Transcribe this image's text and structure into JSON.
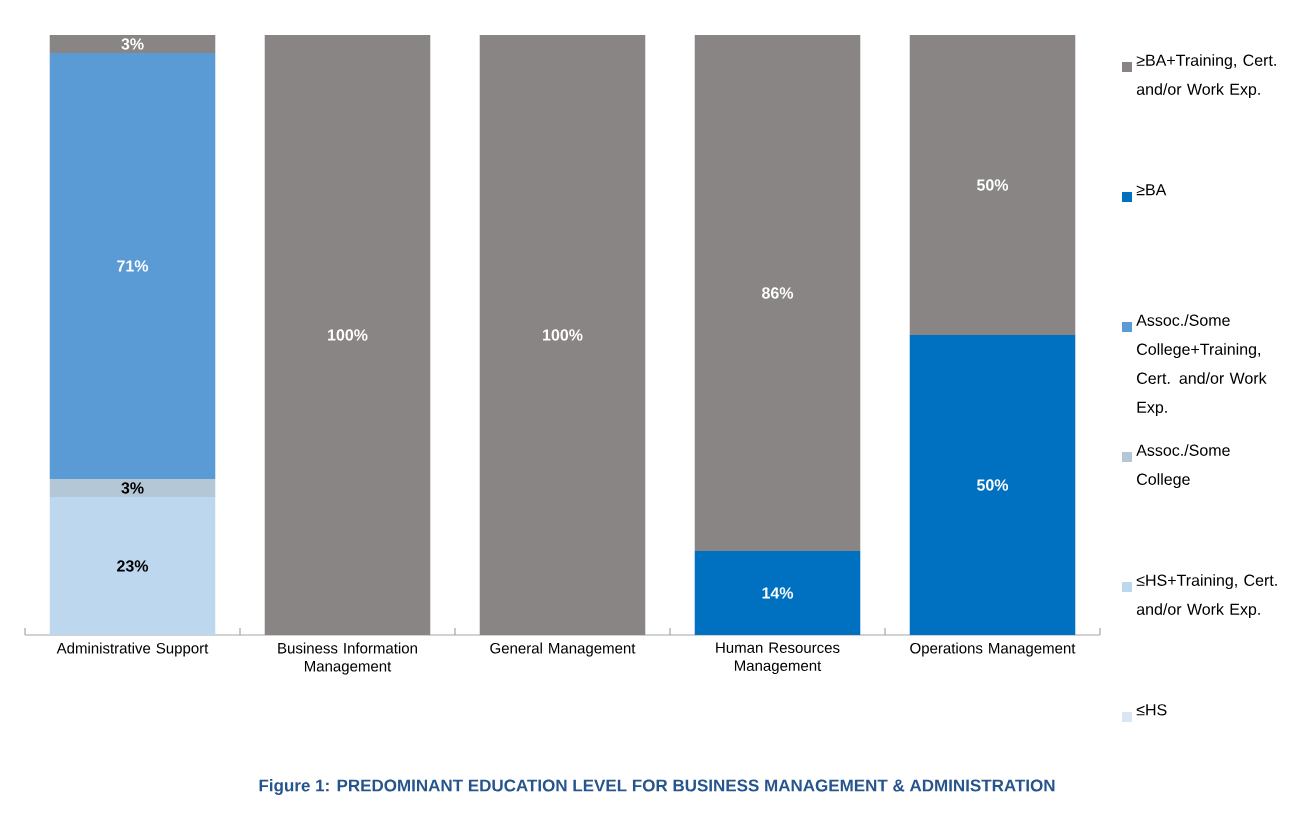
{
  "chart_data": {
    "type": "bar",
    "stacked": true,
    "title": "Figure 1:  PREDOMINANT EDUCATION LEVEL FOR BUSINESS MANAGEMENT & ADMINISTRATION",
    "categories": [
      "Administrative Support",
      "Business Information Management",
      "General Management",
      "Human Resources Management",
      "Operations Management"
    ],
    "series": [
      {
        "name": "≤HS",
        "color": "#dae6f4",
        "values": [
          null,
          null,
          null,
          null,
          null
        ],
        "value_labels": [
          null,
          null,
          null,
          null,
          null
        ]
      },
      {
        "name": "≤HS+Training, Cert. and/or Work Exp.",
        "color": "#bdd7ee",
        "values": [
          23,
          null,
          null,
          null,
          null
        ],
        "value_labels": [
          "23%",
          null,
          null,
          null,
          null
        ]
      },
      {
        "name": "Assoc./Some College",
        "color": "#b4c7d6",
        "values": [
          3,
          null,
          null,
          null,
          null
        ],
        "value_labels": [
          "3%",
          null,
          null,
          null,
          null
        ]
      },
      {
        "name": "Assoc./Some College+Training, Cert. and/or Work Exp.",
        "color": "#5b9bd5",
        "values": [
          71,
          null,
          null,
          null,
          null
        ],
        "value_labels": [
          "71%",
          null,
          null,
          null,
          null
        ]
      },
      {
        "name": "≥BA",
        "color": "#0070c0",
        "values": [
          null,
          null,
          null,
          14,
          50
        ],
        "value_labels": [
          null,
          null,
          null,
          "14%",
          "50%"
        ]
      },
      {
        "name": "≥BA+Training, Cert. and/or Work Exp.",
        "color": "#898584",
        "values": [
          3,
          100,
          100,
          86,
          50
        ],
        "value_labels": [
          "3%",
          "100%",
          "100%",
          "86%",
          "50%"
        ]
      }
    ],
    "legend": "right"
  }
}
